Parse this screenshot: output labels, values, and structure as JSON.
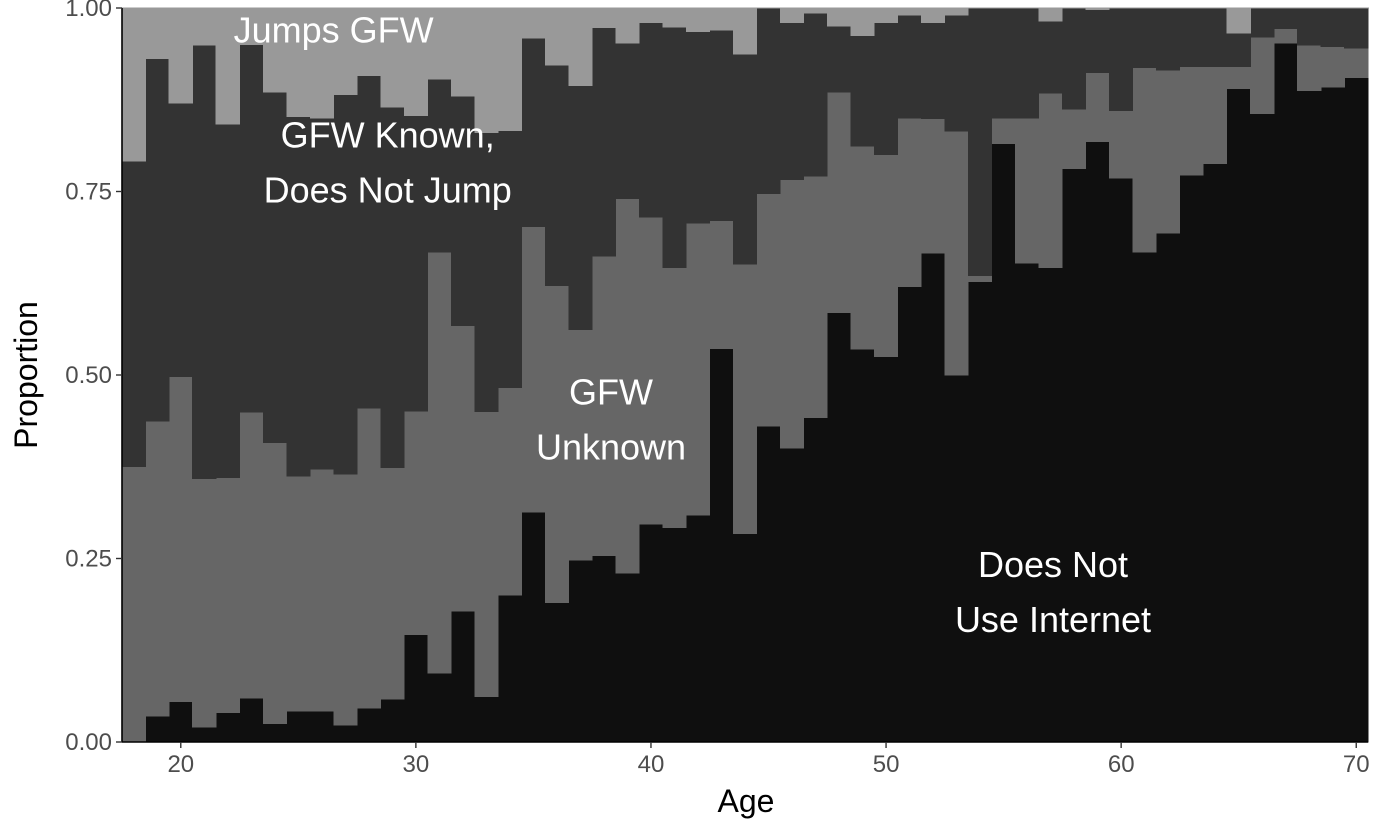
{
  "chart_data": {
    "type": "area",
    "stacked": true,
    "step": true,
    "xlabel": "Age",
    "ylabel": "Proportion",
    "xlim": [
      17.5,
      70.5
    ],
    "ylim": [
      0,
      1
    ],
    "x_ticks": [
      "20",
      "30",
      "40",
      "50",
      "60",
      "70"
    ],
    "y_ticks": [
      "0.00",
      "0.25",
      "0.50",
      "0.75",
      "1.00"
    ],
    "legend": "none",
    "grid": false,
    "x": [
      18,
      19,
      20,
      21,
      22,
      23,
      24,
      25,
      26,
      27,
      28,
      29,
      30,
      31,
      32,
      33,
      34,
      35,
      36,
      37,
      38,
      39,
      40,
      41,
      42,
      43,
      44,
      45,
      46,
      47,
      48,
      49,
      50,
      51,
      52,
      53,
      54,
      55,
      56,
      57,
      58,
      59,
      60,
      61,
      62,
      63,
      64,
      65,
      66,
      67,
      68,
      69,
      70
    ],
    "series": [
      {
        "name": "Does Not Use Internet",
        "color": "#0f0f0f",
        "values": [
          0.0,
          0.035,
          0.055,
          0.02,
          0.04,
          0.06,
          0.025,
          0.042,
          0.042,
          0.023,
          0.046,
          0.058,
          0.146,
          0.094,
          0.178,
          0.062,
          0.2,
          0.313,
          0.19,
          0.248,
          0.254,
          0.23,
          0.297,
          0.292,
          0.309,
          0.536,
          0.284,
          0.43,
          0.4,
          0.442,
          0.585,
          0.535,
          0.525,
          0.62,
          0.666,
          0.5,
          0.627,
          0.815,
          0.652,
          0.646,
          0.781,
          0.818,
          0.768,
          0.667,
          0.693,
          0.772,
          0.788,
          0.89,
          0.856,
          0.952,
          0.887,
          0.892,
          0.905
        ]
      },
      {
        "name": "GFW Unknown",
        "color": "#666666",
        "values": [
          0.375,
          0.402,
          0.443,
          0.339,
          0.32,
          0.389,
          0.383,
          0.32,
          0.33,
          0.342,
          0.409,
          0.316,
          0.305,
          0.573,
          0.389,
          0.388,
          0.283,
          0.389,
          0.432,
          0.314,
          0.408,
          0.51,
          0.418,
          0.354,
          0.398,
          0.174,
          0.367,
          0.317,
          0.366,
          0.329,
          0.3,
          0.277,
          0.275,
          0.23,
          0.183,
          0.332,
          0.008,
          0.035,
          0.198,
          0.238,
          0.081,
          0.094,
          0.092,
          0.252,
          0.222,
          0.148,
          0.132,
          0.03,
          0.104,
          0.02,
          0.062,
          0.055,
          0.04
        ]
      },
      {
        "name": "GFW Known, Does Not Jump",
        "color": "#333333",
        "values": [
          0.416,
          0.494,
          0.372,
          0.59,
          0.482,
          0.501,
          0.477,
          0.49,
          0.478,
          0.517,
          0.453,
          0.491,
          0.402,
          0.236,
          0.313,
          0.38,
          0.35,
          0.257,
          0.3,
          0.332,
          0.311,
          0.212,
          0.265,
          0.328,
          0.261,
          0.26,
          0.286,
          0.253,
          0.214,
          0.222,
          0.09,
          0.15,
          0.18,
          0.14,
          0.131,
          0.158,
          0.365,
          0.15,
          0.15,
          0.098,
          0.14,
          0.086,
          0.14,
          0.081,
          0.085,
          0.09,
          0.092,
          0.046,
          0.04,
          0.028,
          0.051,
          0.053,
          0.055
        ]
      },
      {
        "name": "Jumps GFW",
        "color": "#999999",
        "values": [
          0.209,
          0.069,
          0.13,
          0.051,
          0.158,
          0.05,
          0.115,
          0.148,
          0.15,
          0.118,
          0.092,
          0.135,
          0.147,
          0.097,
          0.12,
          0.17,
          0.167,
          0.041,
          0.078,
          0.106,
          0.027,
          0.048,
          0.02,
          0.026,
          0.032,
          0.03,
          0.063,
          0.0,
          0.02,
          0.007,
          0.025,
          0.038,
          0.02,
          0.01,
          0.02,
          0.01,
          0.0,
          0.0,
          0.0,
          0.018,
          0.0,
          0.002,
          0.0,
          0.0,
          0.0,
          0.0,
          0.0,
          0.034,
          0.0,
          0.0,
          0.0,
          0.0,
          0.0
        ]
      }
    ],
    "annotations": [
      {
        "id": "jumps-gfw",
        "lines": [
          "Jumps GFW"
        ],
        "x": 26.5,
        "y": 0.953
      },
      {
        "id": "gfw-known",
        "lines": [
          "GFW Known,",
          "Does Not Jump"
        ],
        "x": 28.8,
        "y": 0.81,
        "y2": 0.735
      },
      {
        "id": "gfw-unknown",
        "lines": [
          "GFW",
          "Unknown"
        ],
        "x": 38.3,
        "y": 0.46,
        "y2": 0.385
      },
      {
        "id": "no-internet",
        "lines": [
          "Does Not",
          "Use Internet"
        ],
        "x": 57.1,
        "y": 0.225,
        "y2": 0.15
      }
    ]
  }
}
